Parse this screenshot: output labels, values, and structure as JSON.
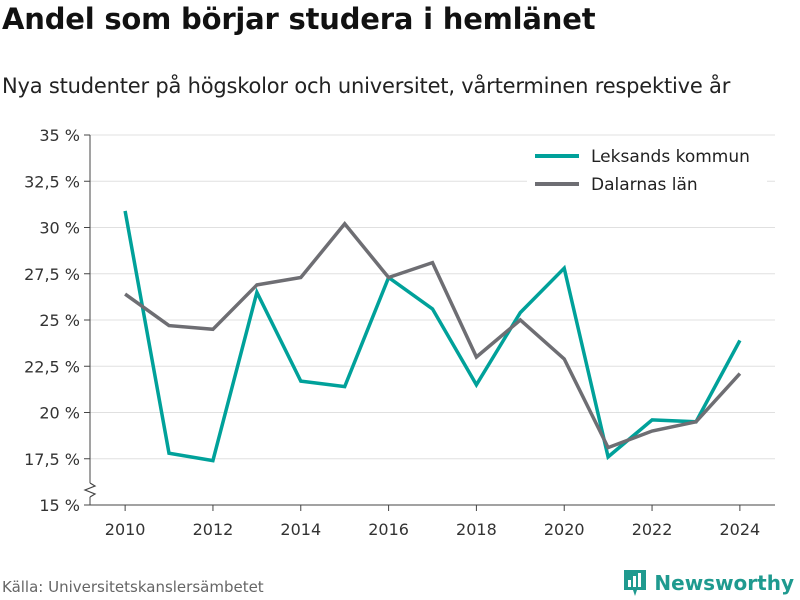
{
  "title": "Andel som börjar studera i hemlänet",
  "subtitle": "Nya studenter på högskolor och universitet, vårterminen respektive år",
  "source": "Källa: Universitetskanslersämbetet",
  "brand": "Newsworthy",
  "colors": {
    "leksand": "#00a19a",
    "dalarna": "#6e6e73",
    "grid": "#e0e0e0",
    "axis": "#444444",
    "brand": "#1f9a8f"
  },
  "chart_data": {
    "type": "line",
    "title": "Andel som börjar studera i hemlänet",
    "ylim": [
      15,
      35
    ],
    "xlim": [
      2009.2,
      2024.8
    ],
    "y_axis_break": true,
    "yticks": [
      {
        "v": 15,
        "label": "15 %"
      },
      {
        "v": 17.5,
        "label": "17,5 %"
      },
      {
        "v": 20,
        "label": "20 %"
      },
      {
        "v": 22.5,
        "label": "22,5 %"
      },
      {
        "v": 25,
        "label": "25 %"
      },
      {
        "v": 27.5,
        "label": "27,5 %"
      },
      {
        "v": 30,
        "label": "30 %"
      },
      {
        "v": 32.5,
        "label": "32,5 %"
      },
      {
        "v": 35,
        "label": "35 %"
      }
    ],
    "xticks": [
      {
        "v": 2010,
        "label": "2010"
      },
      {
        "v": 2012,
        "label": "2012"
      },
      {
        "v": 2014,
        "label": "2014"
      },
      {
        "v": 2016,
        "label": "2016"
      },
      {
        "v": 2018,
        "label": "2018"
      },
      {
        "v": 2020,
        "label": "2020"
      },
      {
        "v": 2022,
        "label": "2022"
      },
      {
        "v": 2024,
        "label": "2024"
      }
    ],
    "x": [
      2010,
      2011,
      2012,
      2013,
      2014,
      2015,
      2016,
      2017,
      2018,
      2019,
      2020,
      2021,
      2022,
      2023,
      2024
    ],
    "legend_position": "top-right",
    "series": [
      {
        "name": "Leksands kommun",
        "color": "#00a19a",
        "values": [
          30.9,
          17.8,
          17.4,
          26.5,
          21.7,
          21.4,
          27.3,
          25.6,
          21.5,
          25.4,
          27.8,
          17.6,
          19.6,
          19.5,
          23.9
        ]
      },
      {
        "name": "Dalarnas län",
        "color": "#6e6e73",
        "values": [
          26.4,
          24.7,
          24.5,
          26.9,
          27.3,
          30.2,
          27.3,
          28.1,
          23.0,
          25.0,
          22.9,
          18.1,
          19.0,
          19.5,
          22.1
        ]
      }
    ]
  }
}
